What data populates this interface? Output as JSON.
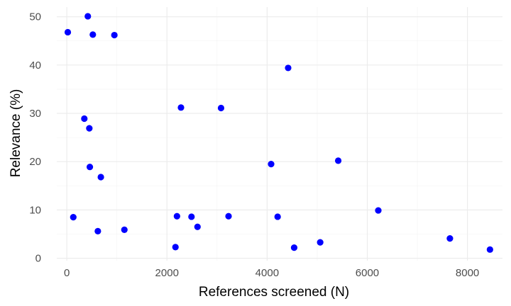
{
  "chart_data": {
    "type": "scatter",
    "xlabel": "References screened (N)",
    "ylabel": "Relevance (%)",
    "xlim": [
      -200,
      8700
    ],
    "ylim": [
      -0.5,
      52
    ],
    "x_ticks": [
      0,
      2000,
      4000,
      6000,
      8000
    ],
    "y_ticks": [
      0,
      10,
      20,
      30,
      40,
      50
    ],
    "grid": true,
    "legend": "none",
    "point_color": "#0000ff",
    "grid_color": "#ebebeb",
    "points": [
      {
        "x": 20,
        "y": 46.8
      },
      {
        "x": 420,
        "y": 50.1
      },
      {
        "x": 520,
        "y": 46.3
      },
      {
        "x": 950,
        "y": 46.2
      },
      {
        "x": 4420,
        "y": 39.4
      },
      {
        "x": 350,
        "y": 28.9
      },
      {
        "x": 450,
        "y": 26.9
      },
      {
        "x": 2280,
        "y": 31.2
      },
      {
        "x": 3080,
        "y": 31.1
      },
      {
        "x": 460,
        "y": 18.9
      },
      {
        "x": 680,
        "y": 16.8
      },
      {
        "x": 4080,
        "y": 19.5
      },
      {
        "x": 5420,
        "y": 20.2
      },
      {
        "x": 6220,
        "y": 9.9
      },
      {
        "x": 130,
        "y": 8.5
      },
      {
        "x": 2200,
        "y": 8.7
      },
      {
        "x": 2490,
        "y": 8.6
      },
      {
        "x": 3230,
        "y": 8.7
      },
      {
        "x": 4210,
        "y": 8.6
      },
      {
        "x": 620,
        "y": 5.6
      },
      {
        "x": 1150,
        "y": 5.9
      },
      {
        "x": 2610,
        "y": 6.5
      },
      {
        "x": 2170,
        "y": 2.3
      },
      {
        "x": 4540,
        "y": 2.2
      },
      {
        "x": 5060,
        "y": 3.3
      },
      {
        "x": 7650,
        "y": 4.1
      },
      {
        "x": 8450,
        "y": 1.8
      }
    ]
  }
}
